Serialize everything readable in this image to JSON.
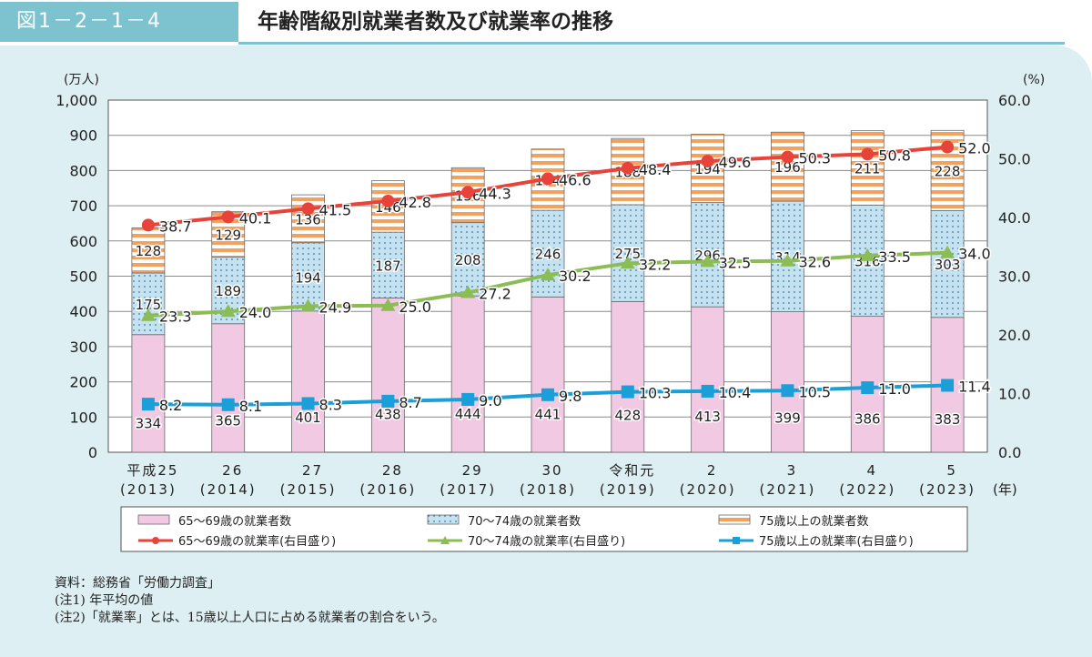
{
  "header": {
    "figure_number": "図1－2－1－4",
    "title": "年齢階級別就業者数及び就業率の推移"
  },
  "notes": [
    "資料：総務省「労働力調査」",
    "(注1) 年平均の値",
    "(注2)「就業率」とは、15歳以上人口に占める就業者の割合をいう。"
  ],
  "colors": {
    "bar_65_69": "#f2c9e2",
    "bar_70_74": "#c5e2f0",
    "bar_75": "#f1a160",
    "line_65_69": "#e8433a",
    "line_70_74": "#8cbc54",
    "line_75": "#1a9fd8"
  },
  "chart_data": {
    "type": "bar",
    "stacked": true,
    "categories": [
      [
        "平成25",
        "(2013)"
      ],
      [
        "26",
        "(2014)"
      ],
      [
        "27",
        "(2015)"
      ],
      [
        "28",
        "(2016)"
      ],
      [
        "29",
        "(2017)"
      ],
      [
        "30",
        "(2018)"
      ],
      [
        "令和元",
        "(2019)"
      ],
      [
        "2",
        "(2020)"
      ],
      [
        "3",
        "(2021)"
      ],
      [
        "4",
        "(2022)"
      ],
      [
        "5",
        "(2023)"
      ]
    ],
    "x_unit": "(年)",
    "y_left": {
      "label": "(万人)",
      "range": [
        0,
        1000
      ],
      "ticks": [
        "0",
        "100",
        "200",
        "300",
        "400",
        "500",
        "600",
        "700",
        "800",
        "900",
        "1,000"
      ]
    },
    "y_right": {
      "label": "(%)",
      "range": [
        0,
        60
      ],
      "ticks": [
        "0.0",
        "10.0",
        "20.0",
        "30.0",
        "40.0",
        "50.0",
        "60.0"
      ]
    },
    "grid": true,
    "legend_position": "bottom",
    "bar_series": [
      {
        "name": "65～69歳の就業者数",
        "values": [
          334,
          365,
          401,
          438,
          444,
          441,
          428,
          413,
          399,
          386,
          383
        ]
      },
      {
        "name": "70～74歳の就業者数",
        "values": [
          175,
          189,
          194,
          187,
          208,
          246,
          275,
          296,
          314,
          316,
          303
        ]
      },
      {
        "name": "75歳以上の就業者数",
        "values": [
          128,
          129,
          136,
          146,
          156,
          174,
          188,
          194,
          196,
          211,
          228
        ]
      }
    ],
    "line_series": [
      {
        "name": "65～69歳の就業率(右目盛り)",
        "values": [
          "38.7",
          "40.1",
          "41.5",
          "42.8",
          "44.3",
          "46.6",
          "48.4",
          "49.6",
          "50.3",
          "50.8",
          "52.0"
        ]
      },
      {
        "name": "70～74歳の就業率(右目盛り)",
        "values": [
          "23.3",
          "24.0",
          "24.9",
          "25.0",
          "27.2",
          "30.2",
          "32.2",
          "32.5",
          "32.6",
          "33.5",
          "34.0"
        ]
      },
      {
        "name": "75歳以上の就業率(右目盛り)",
        "values": [
          "8.2",
          "8.1",
          "8.3",
          "8.7",
          "9.0",
          "9.8",
          "10.3",
          "10.4",
          "10.5",
          "11.0",
          "11.4"
        ]
      }
    ]
  }
}
